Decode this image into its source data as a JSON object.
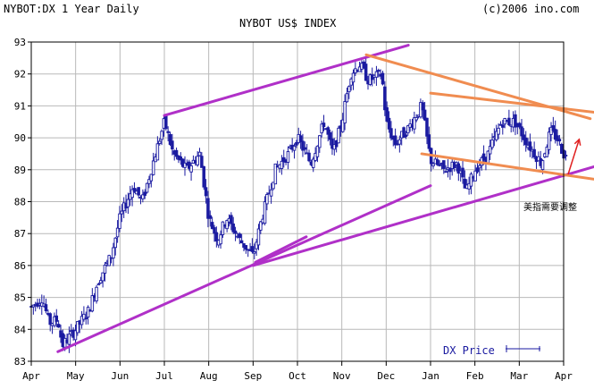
{
  "header": {
    "left": "NYBOT:DX 1 Year Daily",
    "right": "(c)2006 ino.com",
    "title": "NYBOT US$ INDEX"
  },
  "annotation": "美指需要调整",
  "legend": {
    "label": "DX Price"
  },
  "colors": {
    "candle": "#1a1aa0",
    "grid": "#b9b9b9",
    "purple_trend": "#b030c8",
    "orange_trend": "#f08c50",
    "arrow": "#e02020",
    "axis": "#000000"
  },
  "chart_data": {
    "type": "candlestick",
    "title": "NYBOT US$ INDEX",
    "ylim": [
      83,
      93
    ],
    "yticks": [
      83,
      84,
      85,
      86,
      87,
      88,
      89,
      90,
      91,
      92,
      93
    ],
    "xticks": [
      "Apr",
      "May",
      "Jun",
      "Jul",
      "Aug",
      "Sep",
      "Oct",
      "Nov",
      "Dec",
      "Jan",
      "Feb",
      "Mar",
      "Apr"
    ],
    "grid": true,
    "legend_position": "bottom-right",
    "anchors": [
      {
        "m": 0.0,
        "v": 84.7
      },
      {
        "m": 0.25,
        "v": 85.0
      },
      {
        "m": 0.4,
        "v": 84.2
      },
      {
        "m": 0.6,
        "v": 84.3
      },
      {
        "m": 0.7,
        "v": 83.5
      },
      {
        "m": 1.0,
        "v": 84.0
      },
      {
        "m": 1.3,
        "v": 84.6
      },
      {
        "m": 1.5,
        "v": 85.5
      },
      {
        "m": 1.8,
        "v": 86.3
      },
      {
        "m": 2.0,
        "v": 87.5
      },
      {
        "m": 2.3,
        "v": 88.5
      },
      {
        "m": 2.5,
        "v": 88.0
      },
      {
        "m": 2.7,
        "v": 89.0
      },
      {
        "m": 3.0,
        "v": 90.5
      },
      {
        "m": 3.2,
        "v": 89.5
      },
      {
        "m": 3.5,
        "v": 89.0
      },
      {
        "m": 3.8,
        "v": 89.5
      },
      {
        "m": 4.0,
        "v": 87.5
      },
      {
        "m": 4.2,
        "v": 86.8
      },
      {
        "m": 4.4,
        "v": 87.5
      },
      {
        "m": 4.7,
        "v": 86.8
      },
      {
        "m": 5.0,
        "v": 86.3
      },
      {
        "m": 5.2,
        "v": 87.5
      },
      {
        "m": 5.5,
        "v": 89.0
      },
      {
        "m": 5.8,
        "v": 89.5
      },
      {
        "m": 6.0,
        "v": 90.0
      },
      {
        "m": 6.3,
        "v": 89.2
      },
      {
        "m": 6.6,
        "v": 90.5
      },
      {
        "m": 6.8,
        "v": 89.5
      },
      {
        "m": 7.0,
        "v": 90.5
      },
      {
        "m": 7.2,
        "v": 92.0
      },
      {
        "m": 7.4,
        "v": 92.3
      },
      {
        "m": 7.6,
        "v": 91.8
      },
      {
        "m": 7.9,
        "v": 92.0
      },
      {
        "m": 8.0,
        "v": 90.5
      },
      {
        "m": 8.2,
        "v": 89.8
      },
      {
        "m": 8.5,
        "v": 90.3
      },
      {
        "m": 8.8,
        "v": 91.0
      },
      {
        "m": 9.0,
        "v": 89.3
      },
      {
        "m": 9.3,
        "v": 89.0
      },
      {
        "m": 9.6,
        "v": 89.2
      },
      {
        "m": 9.8,
        "v": 88.3
      },
      {
        "m": 10.0,
        "v": 89.0
      },
      {
        "m": 10.3,
        "v": 89.5
      },
      {
        "m": 10.6,
        "v": 90.5
      },
      {
        "m": 10.9,
        "v": 90.5
      },
      {
        "m": 11.2,
        "v": 89.8
      },
      {
        "m": 11.5,
        "v": 89.2
      },
      {
        "m": 11.7,
        "v": 90.2
      },
      {
        "m": 11.85,
        "v": 90.0
      },
      {
        "m": 12.0,
        "v": 89.5
      },
      {
        "m": 12.05,
        "v": 89.4
      }
    ],
    "trendlines": [
      {
        "name": "upper-channel-left",
        "color": "purple",
        "from": {
          "m": 3.0,
          "v": 90.7
        },
        "to": {
          "m": 8.5,
          "v": 92.9
        }
      },
      {
        "name": "lower-channel-left",
        "color": "purple",
        "from": {
          "m": 0.6,
          "v": 83.3
        },
        "to": {
          "m": 9.0,
          "v": 88.5
        }
      },
      {
        "name": "long-support",
        "color": "purple",
        "from": {
          "m": 5.0,
          "v": 86.0
        },
        "to": {
          "m": 12.7,
          "v": 89.1
        }
      },
      {
        "name": "sep-bottom-stub",
        "color": "purple",
        "from": {
          "m": 5.05,
          "v": 86.1
        },
        "to": {
          "m": 6.2,
          "v": 86.9
        }
      },
      {
        "name": "falling-resistance",
        "color": "orange",
        "from": {
          "m": 7.55,
          "v": 92.6
        },
        "to": {
          "m": 12.6,
          "v": 90.6
        }
      },
      {
        "name": "triangle-upper",
        "color": "orange",
        "from": {
          "m": 9.0,
          "v": 91.4
        },
        "to": {
          "m": 12.7,
          "v": 90.8
        }
      },
      {
        "name": "triangle-lower",
        "color": "orange",
        "from": {
          "m": 8.8,
          "v": 89.5
        },
        "to": {
          "m": 12.7,
          "v": 88.7
        }
      }
    ],
    "arrow": {
      "from": {
        "m": 12.1,
        "v": 88.85
      },
      "to": {
        "m": 12.35,
        "v": 89.95
      }
    }
  }
}
